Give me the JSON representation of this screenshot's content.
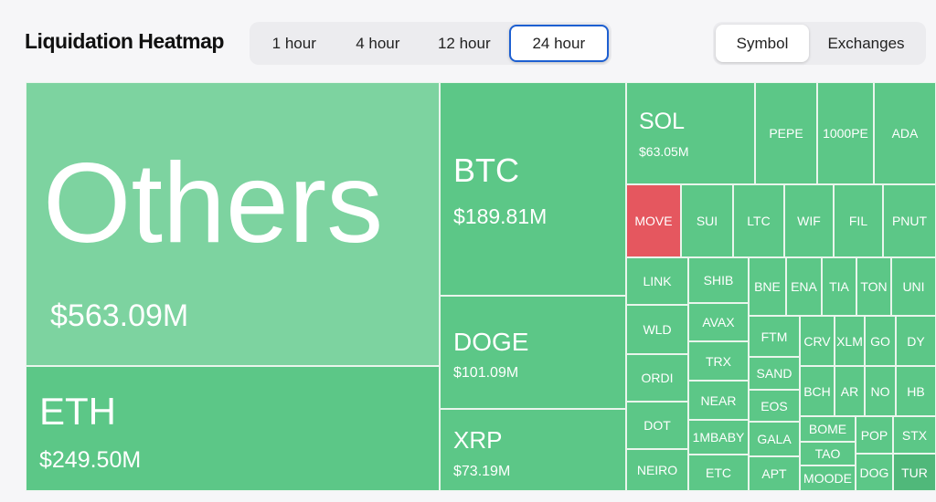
{
  "header": {
    "title": "Liquidation Heatmap"
  },
  "time_filters": {
    "selected": "24 hour",
    "options": [
      {
        "key": "1h",
        "label": "1 hour"
      },
      {
        "key": "4h",
        "label": "4 hour"
      },
      {
        "key": "12h",
        "label": "12 hour"
      },
      {
        "key": "24h",
        "label": "24 hour"
      }
    ]
  },
  "view_toggle": {
    "selected": "Symbol",
    "options": [
      {
        "key": "symbol",
        "label": "Symbol"
      },
      {
        "key": "exchanges",
        "label": "Exchanges"
      }
    ]
  },
  "colors": {
    "gain_light": "#7dd3a0",
    "gain": "#5cc787",
    "gain_dark": "#50b87a",
    "loss": "#e5575f",
    "tile_border": "#e9f5ec"
  },
  "chart_data": {
    "type": "treemap",
    "unit": "USD (millions)",
    "labeled": [
      {
        "symbol": "Others",
        "value_text": "$563.09M",
        "value": 563.09
      },
      {
        "symbol": "ETH",
        "value_text": "$249.50M",
        "value": 249.5
      },
      {
        "symbol": "BTC",
        "value_text": "$189.81M",
        "value": 189.81
      },
      {
        "symbol": "DOGE",
        "value_text": "$101.09M",
        "value": 101.09
      },
      {
        "symbol": "XRP",
        "value_text": "$73.19M",
        "value": 73.19
      },
      {
        "symbol": "SOL",
        "value_text": "$63.05M",
        "value": 63.05
      }
    ],
    "unlabeled": [
      "PEPE",
      "1000PE",
      "ADA",
      "MOVE",
      "SUI",
      "LTC",
      "WIF",
      "FIL",
      "PNUT",
      "LINK",
      "SHIB",
      "BNE",
      "ENA",
      "TIA",
      "TON",
      "UNI",
      "WLD",
      "AVAX",
      "FTM",
      "CRV",
      "XLM",
      "GO",
      "DY",
      "ORDI",
      "TRX",
      "SAND",
      "BCH",
      "AR",
      "NO",
      "HB",
      "DOT",
      "NEAR",
      "EOS",
      "BOME",
      "POP",
      "STX",
      "1MBABY",
      "GALA",
      "TAO",
      "NEIRO",
      "ETC",
      "APT",
      "MOODE",
      "DOG",
      "TUR"
    ],
    "highlighted_loss": "MOVE"
  }
}
